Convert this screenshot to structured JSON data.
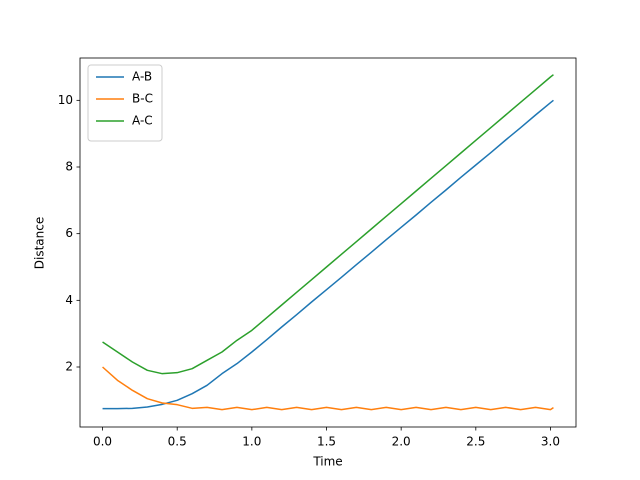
{
  "chart_data": {
    "type": "line",
    "xlabel": "Time",
    "ylabel": "Distance",
    "x": [
      0,
      0.1,
      0.2,
      0.3,
      0.4,
      0.5,
      0.6,
      0.7,
      0.8,
      0.9,
      1.0,
      1.1,
      1.2,
      1.3,
      1.4,
      1.5,
      1.6,
      1.7,
      1.8,
      1.9,
      2.0,
      2.1,
      2.2,
      2.3,
      2.4,
      2.5,
      2.6,
      2.7,
      2.8,
      2.9,
      3.0,
      3.02
    ],
    "series": [
      {
        "name": "A-B",
        "color": "#1f77b4",
        "values": [
          0.75,
          0.75,
          0.76,
          0.8,
          0.88,
          1.0,
          1.2,
          1.45,
          1.8,
          2.1,
          2.45,
          2.82,
          3.2,
          3.57,
          3.95,
          4.32,
          4.69,
          5.07,
          5.44,
          5.82,
          6.19,
          6.56,
          6.94,
          7.31,
          7.69,
          8.06,
          8.43,
          8.81,
          9.18,
          9.56,
          9.93,
          10.0
        ]
      },
      {
        "name": "B-C",
        "color": "#ff7f0e",
        "values": [
          2.0,
          1.6,
          1.3,
          1.05,
          0.92,
          0.87,
          0.76,
          0.79,
          0.72,
          0.79,
          0.72,
          0.79,
          0.72,
          0.79,
          0.72,
          0.79,
          0.72,
          0.79,
          0.72,
          0.79,
          0.72,
          0.79,
          0.72,
          0.79,
          0.72,
          0.79,
          0.72,
          0.79,
          0.72,
          0.79,
          0.72,
          0.78
        ]
      },
      {
        "name": "A-C",
        "color": "#2ca02c",
        "values": [
          2.75,
          2.45,
          2.15,
          1.9,
          1.8,
          1.83,
          1.95,
          2.2,
          2.45,
          2.8,
          3.1,
          3.48,
          3.86,
          4.24,
          4.62,
          5.0,
          5.38,
          5.76,
          6.14,
          6.52,
          6.9,
          7.28,
          7.66,
          8.04,
          8.42,
          8.8,
          9.18,
          9.56,
          9.94,
          10.32,
          10.7,
          10.77
        ]
      }
    ],
    "xlim": [
      -0.151,
      3.171
    ],
    "ylim": [
      0.2,
      11.27
    ],
    "xticks": [
      {
        "value": 0,
        "label": "0.0"
      },
      {
        "value": 0.5,
        "label": "0.5"
      },
      {
        "value": 1.0,
        "label": "1.0"
      },
      {
        "value": 1.5,
        "label": "1.5"
      },
      {
        "value": 2.0,
        "label": "2.0"
      },
      {
        "value": 2.5,
        "label": "2.5"
      },
      {
        "value": 3.0,
        "label": "3.0"
      }
    ],
    "yticks": [
      2,
      4,
      6,
      8,
      10
    ],
    "legend": "upper-left",
    "grid": false
  }
}
